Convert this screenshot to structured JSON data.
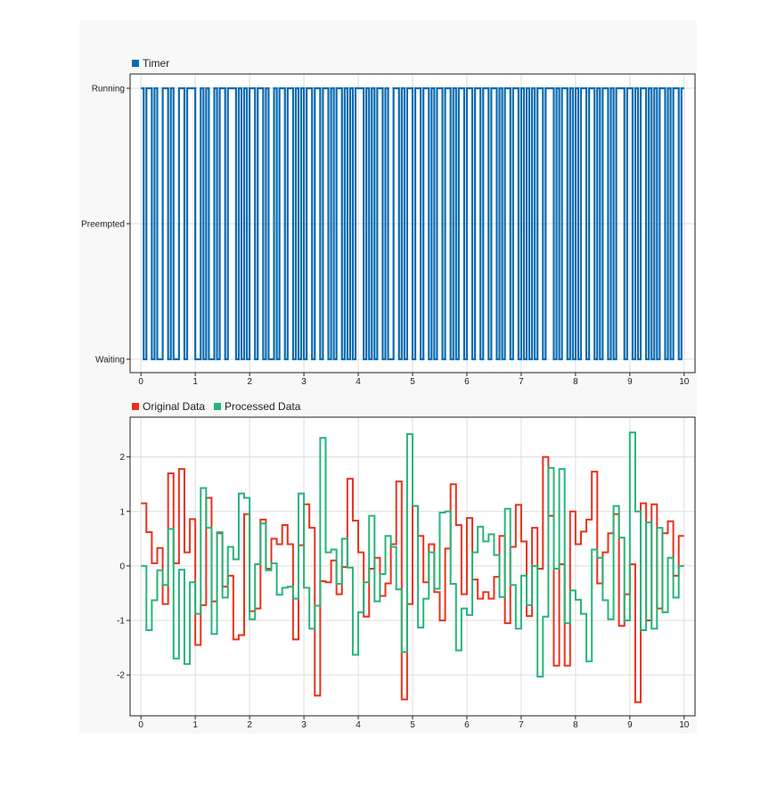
{
  "chart_data": [
    {
      "type": "line",
      "step": true,
      "legend": [
        {
          "name": "Timer",
          "color": "#0b6bb0"
        }
      ],
      "legend_placement": "top-left",
      "xlim": [
        -0.2,
        10.2
      ],
      "x_ticks": [
        0,
        1,
        2,
        3,
        4,
        5,
        6,
        7,
        8,
        9,
        10
      ],
      "y_categories": [
        "Waiting",
        "Preempted",
        "Running"
      ],
      "grid": true,
      "series": [
        {
          "name": "Timer",
          "color": "#0b6bb0",
          "x_start": 0.0,
          "x_step": 0.05,
          "states": [
            "Running",
            "Waiting",
            "Running",
            "Running",
            "Waiting",
            "Running",
            "Waiting",
            "Waiting",
            "Running",
            "Running",
            "Waiting",
            "Running",
            "Waiting",
            "Waiting",
            "Running",
            "Running",
            "Waiting",
            "Running",
            "Running",
            "Running",
            "Waiting",
            "Waiting",
            "Running",
            "Waiting",
            "Running",
            "Waiting",
            "Waiting",
            "Running",
            "Waiting",
            "Running",
            "Running",
            "Waiting",
            "Running",
            "Running",
            "Running",
            "Waiting",
            "Running",
            "Waiting",
            "Running",
            "Waiting",
            "Running",
            "Running",
            "Waiting",
            "Running",
            "Running",
            "Waiting",
            "Running",
            "Waiting",
            "Waiting",
            "Running",
            "Waiting",
            "Running",
            "Running",
            "Waiting",
            "Running",
            "Running",
            "Waiting",
            "Running",
            "Waiting",
            "Running",
            "Waiting",
            "Running",
            "Running",
            "Waiting",
            "Running",
            "Running",
            "Waiting",
            "Running",
            "Running",
            "Waiting",
            "Running",
            "Waiting",
            "Running",
            "Running",
            "Waiting",
            "Running",
            "Waiting",
            "Running",
            "Waiting",
            "Running",
            "Running",
            "Running",
            "Waiting",
            "Running",
            "Waiting",
            "Running",
            "Waiting",
            "Running",
            "Running",
            "Waiting",
            "Running",
            "Waiting",
            "Waiting",
            "Running",
            "Running",
            "Waiting",
            "Running",
            "Waiting",
            "Running",
            "Running",
            "Waiting",
            "Running",
            "Running",
            "Waiting",
            "Running",
            "Running",
            "Waiting",
            "Running",
            "Waiting",
            "Running",
            "Running",
            "Waiting",
            "Running",
            "Running",
            "Waiting",
            "Running",
            "Waiting",
            "Running",
            "Running",
            "Waiting",
            "Running",
            "Running",
            "Waiting",
            "Running",
            "Running",
            "Waiting",
            "Running",
            "Running",
            "Waiting",
            "Running",
            "Running",
            "Waiting",
            "Running",
            "Waiting",
            "Running",
            "Running",
            "Waiting",
            "Running",
            "Running",
            "Waiting",
            "Running",
            "Waiting",
            "Running",
            "Waiting",
            "Running",
            "Waiting",
            "Running",
            "Running",
            "Waiting",
            "Running",
            "Running",
            "Running",
            "Waiting",
            "Running",
            "Waiting",
            "Running",
            "Running",
            "Waiting",
            "Running",
            "Waiting",
            "Running",
            "Waiting",
            "Running",
            "Running",
            "Waiting",
            "Running",
            "Running",
            "Waiting",
            "Running",
            "Waiting",
            "Running",
            "Running",
            "Waiting",
            "Running",
            "Waiting",
            "Running",
            "Running",
            "Running",
            "Waiting",
            "Running",
            "Running",
            "Waiting",
            "Running",
            "Waiting",
            "Running",
            "Running",
            "Waiting",
            "Running",
            "Waiting",
            "Running",
            "Waiting",
            "Running",
            "Running",
            "Waiting",
            "Running",
            "Waiting",
            "Running",
            "Running",
            "Waiting",
            "Running"
          ]
        }
      ]
    },
    {
      "type": "line",
      "step": true,
      "legend": [
        {
          "name": "Original Data",
          "color": "#e8321c"
        },
        {
          "name": "Processed Data",
          "color": "#25b57a"
        }
      ],
      "legend_placement": "top-left",
      "xlim": [
        -0.2,
        10.2
      ],
      "ylim": [
        -2.75,
        2.73
      ],
      "x_ticks": [
        0,
        1,
        2,
        3,
        4,
        5,
        6,
        7,
        8,
        9,
        10
      ],
      "y_ticks": [
        -2,
        -1,
        0,
        1,
        2
      ],
      "grid": true,
      "series": [
        {
          "name": "Original Data",
          "color": "#e8321c",
          "x_start": 0.0,
          "x_step": 0.1,
          "values": [
            1.15,
            0.62,
            0.05,
            0.33,
            -0.7,
            1.7,
            0.05,
            1.78,
            0.25,
            0.86,
            -1.45,
            -0.72,
            1.25,
            -0.65,
            0.6,
            -0.38,
            -0.18,
            -1.35,
            -1.27,
            0.95,
            -0.83,
            -0.78,
            0.85,
            -0.05,
            0.5,
            0.4,
            0.75,
            0.4,
            -1.35,
            0.38,
            1.13,
            0.7,
            -2.38,
            -0.28,
            -0.3,
            0.1,
            -0.52,
            -0.02,
            1.6,
            0.83,
            0.25,
            -0.93,
            -0.05,
            0.15,
            -0.55,
            -0.32,
            0.4,
            1.55,
            -2.45,
            -0.7,
            1.1,
            0.55,
            -0.3,
            0.4,
            -0.48,
            -1.0,
            0.32,
            1.5,
            0.75,
            -0.52,
            0.88,
            -0.25,
            -0.6,
            -0.48,
            -0.6,
            -0.2,
            0.55,
            -1.05,
            0.35,
            1.12,
            0.45,
            -0.92,
            0.7,
            -0.05,
            2.0,
            0.92,
            -1.83,
            0.03,
            -1.83,
            1.0,
            0.4,
            0.63,
            0.85,
            1.73,
            -0.32,
            0.25,
            0.6,
            0.95,
            -1.1,
            -0.52,
            0.03,
            -2.5,
            1.15,
            -1.0,
            1.13,
            -0.78,
            0.6,
            0.82,
            -0.18,
            0.55
          ]
        },
        {
          "name": "Processed Data",
          "color": "#25b57a",
          "x_start": 0.0,
          "x_step": 0.1,
          "values": [
            0.0,
            -1.18,
            -0.63,
            -0.08,
            -0.35,
            0.68,
            -1.7,
            -0.07,
            -1.8,
            -0.3,
            -0.88,
            1.43,
            0.7,
            -1.25,
            0.62,
            -0.58,
            0.35,
            0.12,
            1.33,
            1.25,
            -0.98,
            0.03,
            0.78,
            -0.08,
            0.05,
            -0.53,
            -0.4,
            -0.38,
            -0.6,
            1.33,
            -0.4,
            -1.15,
            -0.73,
            2.35,
            0.25,
            0.3,
            -0.33,
            0.5,
            -0.03,
            -1.63,
            -0.85,
            -0.3,
            0.92,
            -0.65,
            -0.15,
            0.55,
            0.35,
            -0.43,
            -1.58,
            2.42,
            1.1,
            -1.13,
            -0.6,
            0.25,
            -0.42,
            0.98,
            1.0,
            -0.33,
            -1.55,
            -0.78,
            -0.9,
            0.25,
            0.72,
            0.45,
            0.58,
            0.2,
            -0.57,
            1.05,
            -0.35,
            -1.15,
            -0.18,
            -0.72,
            0.0,
            -2.03,
            -0.93,
            1.8,
            -0.05,
            1.78,
            -1.05,
            -0.45,
            -0.62,
            -0.88,
            -1.75,
            0.3,
            0.15,
            -0.63,
            -0.98,
            1.1,
            0.52,
            -1.0,
            2.45,
            1.0,
            -1.18,
            0.8,
            -1.15,
            0.7,
            -0.85,
            0.15,
            -0.58,
            0.0
          ]
        }
      ]
    }
  ]
}
